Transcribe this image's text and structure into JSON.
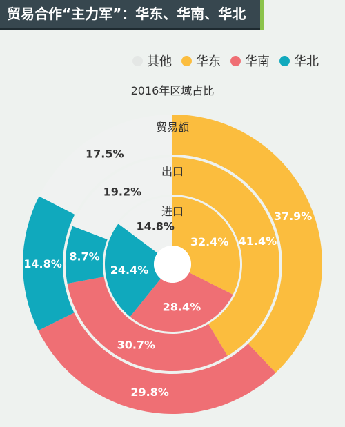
{
  "banner": {
    "title": "贸易合作“主力军”：华东、华南、华北"
  },
  "chart_data": {
    "type": "pie",
    "title": "2016年区域占比",
    "legend": {
      "placement": "top-right",
      "entries": [
        {
          "name": "其他",
          "color": "#f0f2f1"
        },
        {
          "name": "华东",
          "color": "#fbbd3e"
        },
        {
          "name": "华南",
          "color": "#ef6f74"
        },
        {
          "name": "华北",
          "color": "#10a9bd"
        }
      ]
    },
    "categories": [
      "华东",
      "华南",
      "华北",
      "其他"
    ],
    "colors": [
      "#fbbd3e",
      "#ef6f74",
      "#10a9bd",
      "#f0f2f1"
    ],
    "series": [
      {
        "name": "贸易额",
        "values": [
          37.9,
          29.8,
          14.8,
          17.5
        ],
        "labels": [
          "37.9%",
          "29.8%",
          "14.8%",
          "17.5%"
        ]
      },
      {
        "name": "出口",
        "values": [
          41.4,
          30.7,
          8.7,
          19.2
        ],
        "labels": [
          "41.4%",
          "30.7%",
          "8.7%",
          "19.2%"
        ]
      },
      {
        "name": "进口",
        "values": [
          32.4,
          28.4,
          24.4,
          14.8
        ],
        "labels": [
          "32.4%",
          "28.4%",
          "24.4%",
          "14.8%"
        ]
      }
    ]
  }
}
